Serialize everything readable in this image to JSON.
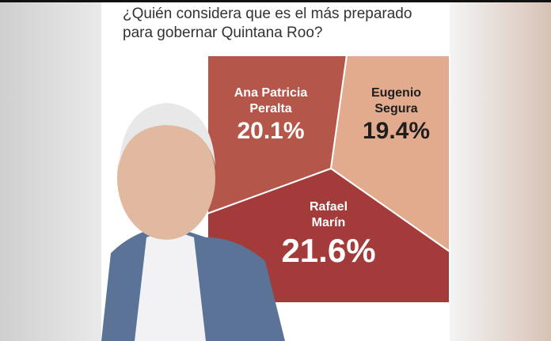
{
  "chart_data": {
    "type": "panels",
    "title": "¿Quién considera que es el más preparado para gobernar Quintana Roo?",
    "categories": [
      "Ana Patricia Peralta",
      "Eugenio Segura",
      "Rafael Marín"
    ],
    "values": [
      20.1,
      19.4,
      21.6
    ],
    "value_labels": [
      "20.1%",
      "19.4%",
      "21.6%"
    ],
    "colors": [
      "#b4574a",
      "#e2ab8e",
      "#a43b3b"
    ],
    "label_colors": [
      "#ffffff",
      "#1e1e1e",
      "#ffffff"
    ]
  }
}
